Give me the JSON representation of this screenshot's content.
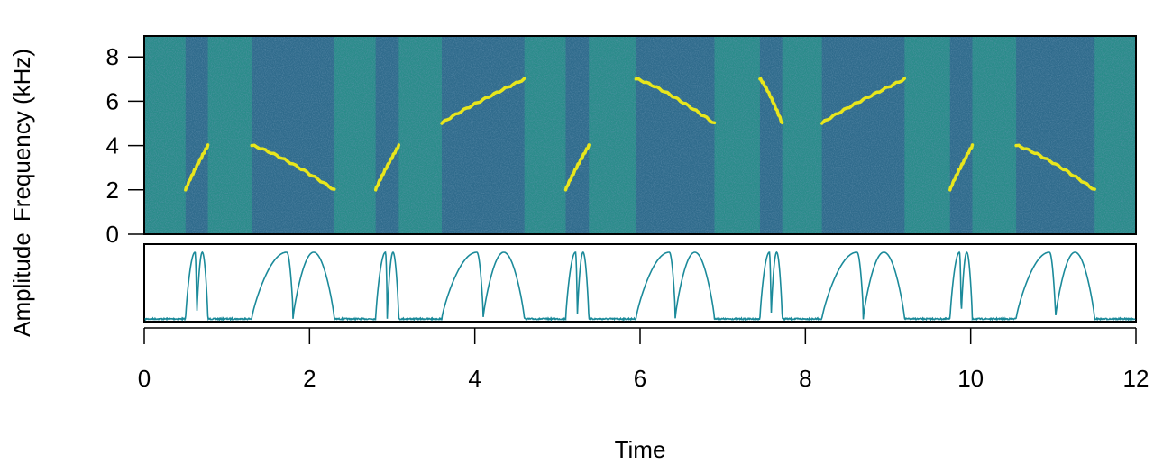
{
  "chart_data": [
    {
      "type": "heatmap",
      "panel": "spectrogram",
      "ylabel": "Frequency (kHz)",
      "xlim": [
        0,
        12
      ],
      "ylim": [
        0,
        9
      ],
      "yticks": [
        "0",
        "2",
        "4",
        "6",
        "8"
      ],
      "colors": {
        "background": "#2a8c8a",
        "quiet_band": "#2f6b8c",
        "signal": "#e8e61c"
      },
      "calls": [
        {
          "start": 0.5,
          "end": 0.77,
          "freq_start": 2,
          "freq_end": 4
        },
        {
          "start": 1.3,
          "end": 2.3,
          "freq_start": 4,
          "freq_end": 2
        },
        {
          "start": 2.8,
          "end": 3.08,
          "freq_start": 2,
          "freq_end": 4
        },
        {
          "start": 3.6,
          "end": 4.6,
          "freq_start": 5,
          "freq_end": 7
        },
        {
          "start": 5.1,
          "end": 5.38,
          "freq_start": 2,
          "freq_end": 4
        },
        {
          "start": 5.95,
          "end": 6.9,
          "freq_start": 7,
          "freq_end": 5
        },
        {
          "start": 7.45,
          "end": 7.72,
          "freq_start": 7,
          "freq_end": 5
        },
        {
          "start": 8.2,
          "end": 9.2,
          "freq_start": 5,
          "freq_end": 7
        },
        {
          "start": 9.75,
          "end": 10.02,
          "freq_start": 2,
          "freq_end": 4
        },
        {
          "start": 10.55,
          "end": 11.5,
          "freq_start": 4,
          "freq_end": 2
        }
      ]
    },
    {
      "type": "line",
      "panel": "amplitude-envelope",
      "ylabel": "Amplitude",
      "xlabel": "Time",
      "xlim": [
        0,
        12
      ],
      "xticks": [
        "0",
        "2",
        "4",
        "6",
        "8",
        "10",
        "12"
      ],
      "color": "#1b8a9a"
    }
  ]
}
